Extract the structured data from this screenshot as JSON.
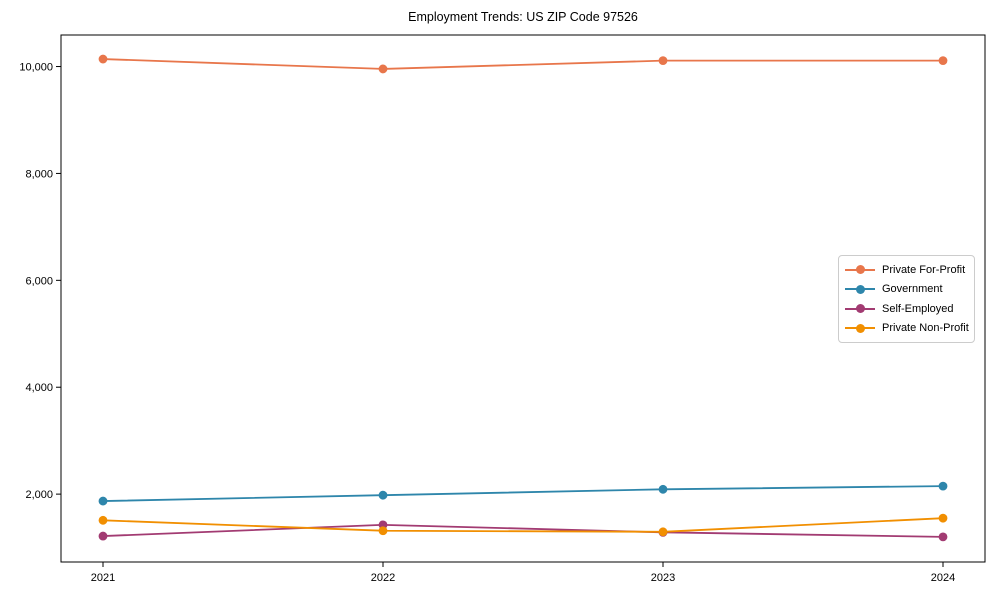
{
  "chart_data": {
    "type": "line",
    "title": "Employment Trends: US ZIP Code 97526",
    "xlabel": "",
    "ylabel": "",
    "categories": [
      "2021",
      "2022",
      "2023",
      "2024"
    ],
    "series": [
      {
        "name": "Private For-Profit",
        "color": "#E8764B",
        "values": [
          10140,
          9955,
          10110,
          10110
        ]
      },
      {
        "name": "Government",
        "color": "#2E86AB",
        "values": [
          1870,
          1980,
          2090,
          2150
        ]
      },
      {
        "name": "Self-Employed",
        "color": "#A23B72",
        "values": [
          1215,
          1425,
          1285,
          1200
        ]
      },
      {
        "name": "Private Non-Profit",
        "color": "#F18F01",
        "values": [
          1510,
          1315,
          1295,
          1550
        ]
      }
    ],
    "yticks": {
      "values": [
        2000,
        4000,
        6000,
        8000,
        10000
      ],
      "labels": [
        "2,000",
        "4,000",
        "6,000",
        "8,000",
        "10,000"
      ]
    },
    "ylim": [
      730,
      10590
    ],
    "xlim": [
      -0.15,
      3.15
    ],
    "grid": false,
    "legend_position": "center-right",
    "marker": "circle",
    "axis_color": "#000000",
    "tick_label_color": "#000000",
    "background_color": "#ffffff"
  }
}
